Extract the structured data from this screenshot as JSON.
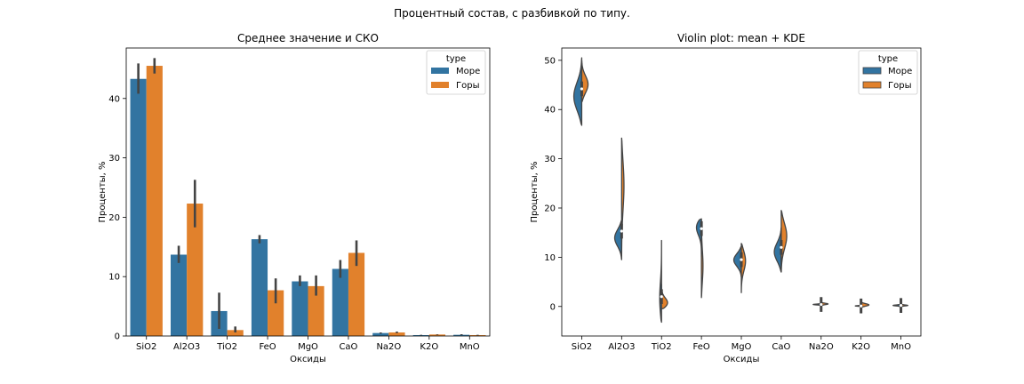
{
  "figure": {
    "suptitle": "Процентный состав, с разбивкой по типу."
  },
  "colors": {
    "sea": "#3274a1",
    "mountain": "#e1812c",
    "err": "#444444"
  },
  "chart_data": [
    {
      "type": "bar",
      "title": "Среднее значение и СКО",
      "xlabel": "Оксиды",
      "ylabel": "Проценты, %",
      "ylim": [
        0,
        48.5
      ],
      "yticks": [
        0,
        10,
        20,
        30,
        40
      ],
      "categories": [
        "SiO2",
        "Al2O3",
        "TiO2",
        "FeO",
        "MgO",
        "CaO",
        "Na2O",
        "K2O",
        "MnO"
      ],
      "legend": {
        "title": "type",
        "position": "top-right"
      },
      "series": [
        {
          "name": "Море",
          "values": [
            43.3,
            13.7,
            4.2,
            16.3,
            9.2,
            11.3,
            0.5,
            0.15,
            0.2
          ],
          "err_low": [
            40.8,
            12.3,
            1.2,
            15.6,
            8.4,
            9.8,
            0.4,
            0.1,
            0.15
          ],
          "err_high": [
            45.9,
            15.2,
            7.3,
            17.0,
            10.2,
            12.8,
            0.6,
            0.2,
            0.3
          ]
        },
        {
          "name": "Горы",
          "values": [
            45.5,
            22.3,
            1.0,
            7.7,
            8.4,
            14.0,
            0.6,
            0.25,
            0.15
          ],
          "err_low": [
            44.2,
            18.3,
            0.6,
            5.5,
            6.8,
            11.8,
            0.5,
            0.2,
            0.1
          ],
          "err_high": [
            46.8,
            26.3,
            1.6,
            9.7,
            10.2,
            16.1,
            0.75,
            0.3,
            0.2
          ]
        }
      ]
    },
    {
      "type": "violin",
      "title": "Violin plot: mean + KDE",
      "xlabel": "Оксиды",
      "ylabel": "Проценты, %",
      "ylim": [
        -6,
        52.5
      ],
      "yticks": [
        0,
        10,
        20,
        30,
        40,
        50
      ],
      "categories": [
        "SiO2",
        "Al2O3",
        "TiO2",
        "FeO",
        "MgO",
        "CaO",
        "Na2O",
        "K2O",
        "MnO"
      ],
      "legend": {
        "title": "type",
        "position": "top-right"
      },
      "series": [
        {
          "name": "Море",
          "range": [
            [
              36.8,
              50.5
            ],
            [
              9.5,
              17.5
            ],
            [
              -3.2,
              13.4
            ],
            [
              10.0,
              17.8
            ],
            [
              6.0,
              12.2
            ],
            [
              7.0,
              16.0
            ],
            [
              0.2,
              0.6
            ],
            [
              0.0,
              0.3
            ],
            [
              0.0,
              0.5
            ]
          ],
          "mode": [
            42.5,
            14.0,
            1.0,
            16.5,
            9.5,
            11.0,
            0.4,
            0.1,
            0.2
          ],
          "width": [
            0.4,
            0.35,
            0.1,
            0.3,
            0.38,
            0.35,
            0.4,
            0.3,
            0.4
          ],
          "median": [
            44.2,
            15.3,
            2.0,
            15.8,
            9.5,
            12.0,
            0.4,
            0.1,
            0.2
          ]
        },
        {
          "name": "Горы",
          "range": [
            [
              41.5,
              50.0
            ],
            [
              10.0,
              34.2
            ],
            [
              -0.5,
              4.5
            ],
            [
              1.8,
              17.5
            ],
            [
              2.8,
              12.8
            ],
            [
              7.0,
              19.5
            ],
            [
              0.2,
              0.9
            ],
            [
              -0.2,
              1.0
            ],
            [
              0.0,
              0.5
            ]
          ],
          "mode": [
            45.0,
            25.0,
            0.5,
            8.0,
            9.5,
            14.5,
            0.5,
            0.3,
            0.2
          ],
          "width": [
            0.32,
            0.12,
            0.35,
            0.08,
            0.22,
            0.28,
            0.35,
            0.4,
            0.35
          ],
          "median": [
            44.2,
            15.3,
            2.0,
            15.8,
            9.5,
            12.0,
            0.4,
            0.1,
            0.2
          ]
        }
      ]
    }
  ]
}
